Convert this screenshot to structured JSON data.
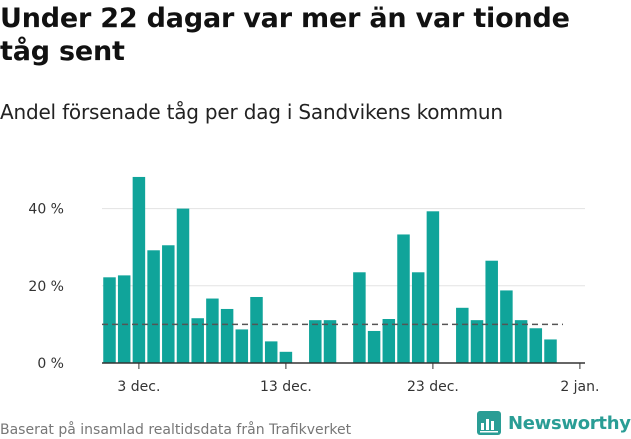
{
  "title": "Under 22 dagar var mer än var tionde tåg sent",
  "subtitle": "Andel försenade tåg per dag i Sandvikens kommun",
  "source": "Baserat på insamlad realtidsdata från Trafikverket",
  "brand": {
    "name": "Newsworthy",
    "logo_icon": "newsworthy-logo-icon"
  },
  "colors": {
    "bar": "#10a49a",
    "reference_line": "#555555",
    "grid": "#e3e3e3",
    "axis": "#333333",
    "brand": "#2a9d95"
  },
  "chart_data": {
    "type": "bar",
    "title": "Under 22 dagar var mer än var tionde tåg sent",
    "subtitle": "Andel försenade tåg per dag i Sandvikens kommun",
    "x": [
      "2023-12-01",
      "2023-12-02",
      "2023-12-03",
      "2023-12-04",
      "2023-12-05",
      "2023-12-06",
      "2023-12-07",
      "2023-12-08",
      "2023-12-09",
      "2023-12-10",
      "2023-12-11",
      "2023-12-12",
      "2023-12-13",
      "2023-12-14",
      "2023-12-15",
      "2023-12-16",
      "2023-12-17",
      "2023-12-18",
      "2023-12-19",
      "2023-12-20",
      "2023-12-21",
      "2023-12-22",
      "2023-12-23",
      "2023-12-24",
      "2023-12-25",
      "2023-12-26",
      "2023-12-27",
      "2023-12-28",
      "2023-12-29",
      "2023-12-30",
      "2023-12-31",
      "2024-01-01"
    ],
    "values": [
      22.2,
      22.7,
      48.2,
      29.2,
      30.5,
      40,
      11.6,
      16.7,
      14,
      8.7,
      17.1,
      5.6,
      2.9,
      null,
      11.1,
      11.1,
      null,
      23.5,
      8.3,
      11.4,
      33.3,
      23.5,
      39.3,
      null,
      14.3,
      11.1,
      26.5,
      18.8,
      11.1,
      9,
      6.1,
      null
    ],
    "reference_line": {
      "value": 10,
      "style": "dashed"
    },
    "ylim": [
      0,
      50
    ],
    "yticks": [
      0,
      20,
      40
    ],
    "ytick_labels": [
      "0 %",
      "20 %",
      "40 %"
    ],
    "xticks": [
      "2023-12-03",
      "2023-12-13",
      "2023-12-23",
      "2024-01-02"
    ],
    "xtick_labels": [
      "3 dec.",
      "13 dec.",
      "23 dec.",
      "2 jan."
    ],
    "grid": "horizontal",
    "legend": "none"
  }
}
